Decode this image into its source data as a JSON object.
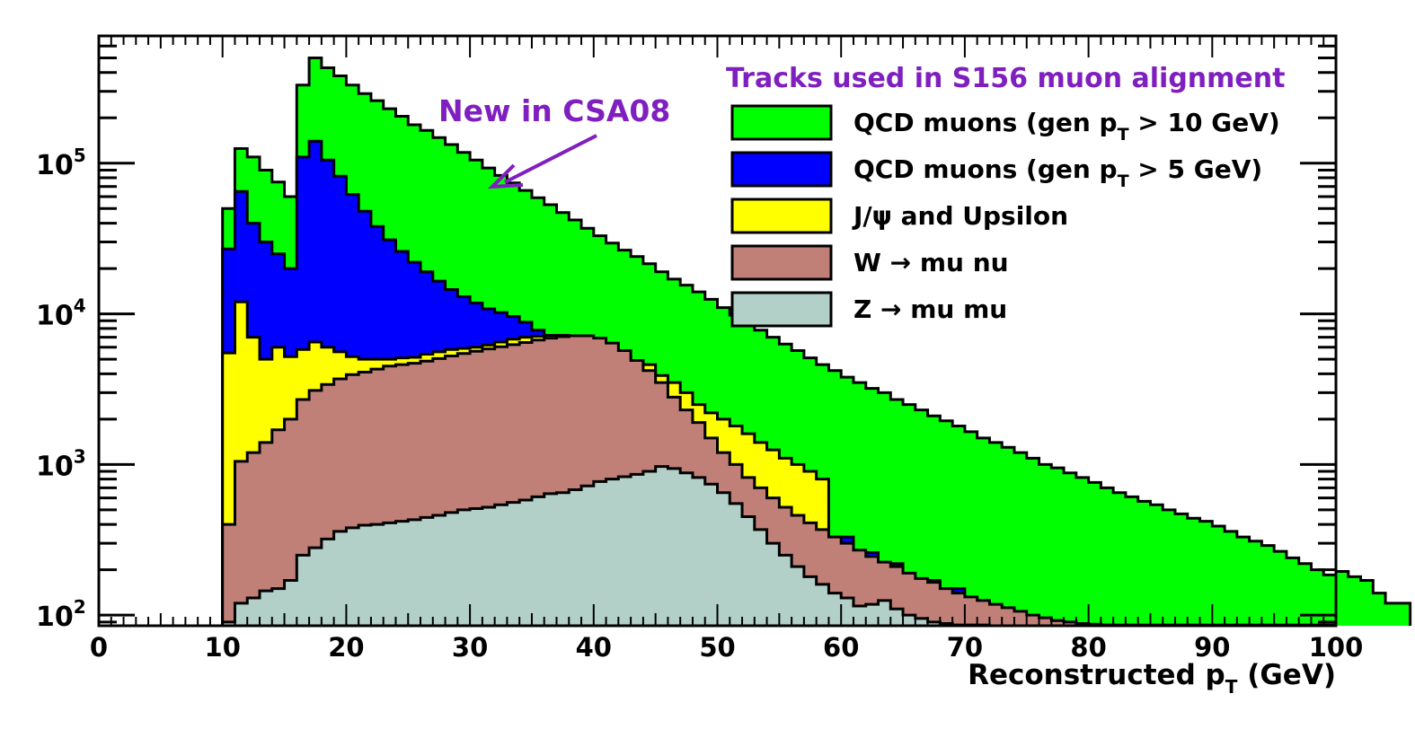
{
  "chart_data": {
    "type": "area",
    "title": "Tracks used in S156 muon alignment",
    "annotation": "New in CSA08",
    "xlabel": {
      "main": "Reconstructed p",
      "sub": "T",
      "suffix": " (GeV)"
    },
    "ylabel": "",
    "xlim": [
      0,
      100
    ],
    "ylim": [
      85,
      700000
    ],
    "yscale": "log",
    "grid": false,
    "legend_position": "top-right",
    "x_ticks": [
      "0",
      "10",
      "20",
      "30",
      "40",
      "50",
      "60",
      "70",
      "80",
      "90",
      "100"
    ],
    "y_ticks": [
      {
        "base": "10",
        "exp": "2"
      },
      {
        "base": "10",
        "exp": "3"
      },
      {
        "base": "10",
        "exp": "4"
      },
      {
        "base": "10",
        "exp": "5"
      }
    ],
    "bin_width": 1,
    "x_start": 10,
    "series": [
      {
        "name": "QCD muons (gen pT > 10 GeV)",
        "legend": {
          "main": "QCD muons (gen p",
          "sub": "T",
          "suffix": " > 10 GeV)"
        },
        "color": "#00ff00",
        "values": [
          50000,
          125000,
          110000,
          90000,
          75000,
          60000,
          330000,
          500000,
          430000,
          380000,
          330000,
          290000,
          260000,
          230000,
          205000,
          180000,
          165000,
          148000,
          133000,
          118000,
          105000,
          93000,
          83000,
          74000,
          66000,
          59000,
          53000,
          47000,
          42000,
          37000,
          33000,
          29500,
          26500,
          24000,
          21500,
          19000,
          17000,
          15500,
          14000,
          12500,
          11000,
          9800,
          8800,
          7800,
          7000,
          6300,
          5700,
          5100,
          4600,
          4200,
          3800,
          3500,
          3200,
          3000,
          2700,
          2500,
          2300,
          2100,
          1950,
          1800,
          1650,
          1500,
          1400,
          1300,
          1200,
          1100,
          1000,
          950,
          880,
          820,
          760,
          700,
          650,
          610,
          570,
          540,
          500,
          470,
          440,
          420,
          390,
          360,
          330,
          310,
          290,
          265,
          240,
          220,
          200,
          185,
          195,
          180,
          170,
          140,
          120,
          120
        ]
      },
      {
        "name": "QCD muons (gen pT > 5 GeV)",
        "legend": {
          "main": "QCD muons (gen p",
          "sub": "T",
          "suffix": " > 5 GeV)"
        },
        "color": "#0000ff",
        "values": [
          27000,
          65000,
          40000,
          30000,
          25000,
          20000,
          110000,
          140000,
          105000,
          82000,
          62000,
          48000,
          38000,
          31000,
          26000,
          22000,
          19000,
          16500,
          14500,
          13000,
          11800,
          10800,
          10200,
          9600,
          8800,
          7800,
          6800,
          5800,
          5000,
          4200,
          3600,
          3100,
          2700,
          2350,
          2000,
          1750,
          1550,
          1380,
          1230,
          1100,
          980,
          880,
          790,
          700,
          620,
          560,
          500,
          450,
          400,
          330,
          330,
          250,
          260,
          210,
          220,
          180,
          170,
          170,
          150,
          150,
          130,
          125,
          115,
          110,
          100,
          95,
          95,
          92,
          90,
          88,
          87,
          86,
          86,
          86,
          86,
          86,
          86,
          86,
          86,
          86,
          86,
          86,
          86,
          86,
          86,
          86,
          86,
          86,
          86,
          86
        ]
      },
      {
        "name": "J/ψ and Upsilon",
        "legend": {
          "main": "J/ψ and Upsilon",
          "sub": "",
          "suffix": ""
        },
        "color": "#ffff00",
        "values": [
          5500,
          12000,
          7000,
          5000,
          6000,
          5200,
          5800,
          6500,
          6000,
          5600,
          5200,
          5000,
          5000,
          5000,
          5100,
          5150,
          5400,
          5600,
          5800,
          5900,
          6000,
          6200,
          6500,
          6800,
          7000,
          7100,
          7200,
          7200,
          7000,
          6700,
          6200,
          5600,
          5200,
          4900,
          4600,
          3900,
          3500,
          3000,
          2500,
          2200,
          2000,
          1800,
          1600,
          1400,
          1250,
          1100,
          1000,
          900,
          800
        ]
      },
      {
        "name": "W → mu nu",
        "legend": {
          "main": "W → mu nu",
          "sub": "",
          "suffix": ""
        },
        "color": "#c08078",
        "values": [
          400,
          1050,
          1200,
          1400,
          1700,
          2000,
          2700,
          3100,
          3400,
          3700,
          3950,
          4100,
          4300,
          4500,
          4600,
          4700,
          4850,
          5050,
          5250,
          5450,
          5650,
          5850,
          6050,
          6250,
          6450,
          6700,
          6900,
          7050,
          7150,
          7150,
          6900,
          6400,
          5700,
          4900,
          4200,
          3500,
          2800,
          2300,
          1900,
          1500,
          1200,
          1000,
          820,
          700,
          600,
          520,
          460,
          410,
          370,
          330,
          300,
          270,
          245,
          225,
          210,
          190,
          175,
          165,
          150,
          140,
          132,
          125,
          118,
          112,
          106,
          100,
          96,
          92,
          90,
          88,
          86,
          86
        ]
      },
      {
        "name": "Z → mu mu",
        "legend": {
          "main": "Z → mu mu",
          "sub": "",
          "suffix": ""
        },
        "color": "#b2d0c8",
        "values": [
          90,
          120,
          130,
          145,
          150,
          170,
          250,
          280,
          320,
          360,
          380,
          395,
          400,
          410,
          420,
          430,
          445,
          460,
          480,
          500,
          510,
          520,
          540,
          560,
          580,
          610,
          640,
          650,
          680,
          720,
          770,
          800,
          830,
          860,
          900,
          970,
          940,
          880,
          820,
          740,
          650,
          550,
          450,
          370,
          300,
          250,
          210,
          180,
          160,
          140,
          130,
          115,
          118,
          125,
          110,
          100,
          95,
          90,
          88,
          86,
          86,
          86
        ]
      }
    ]
  }
}
